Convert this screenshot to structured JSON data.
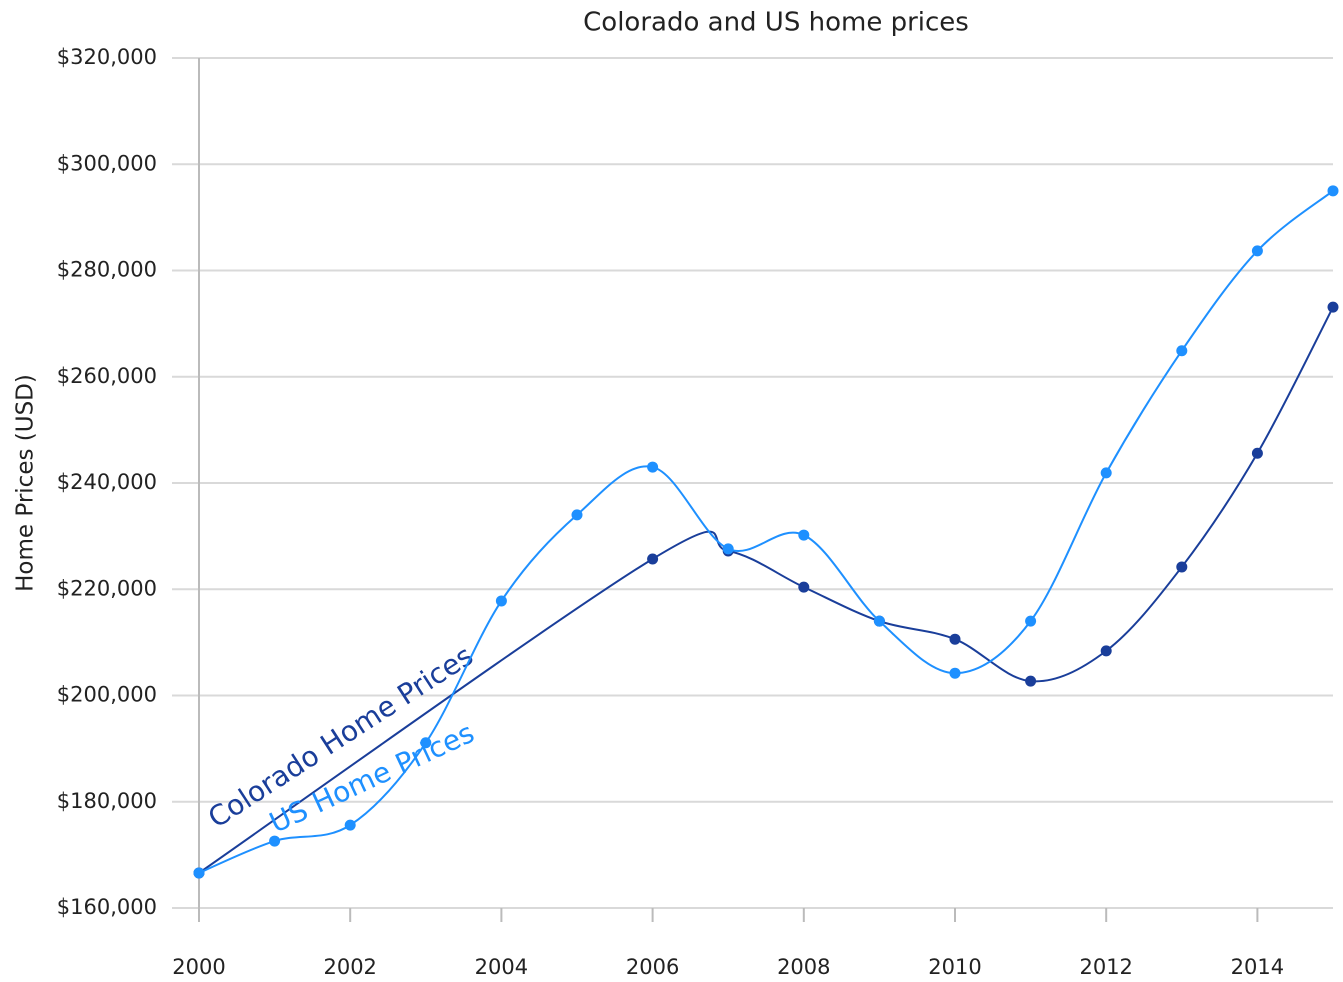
{
  "chart_data": {
    "type": "line",
    "title": "Colorado and US home prices",
    "y_label": "Home Prices (USD)",
    "xlim": [
      2000,
      2015
    ],
    "xticks": [
      2000,
      2002,
      2004,
      2006,
      2008,
      2010,
      2012,
      2014
    ],
    "ylim": [
      160000,
      320000
    ],
    "yticks": [
      {
        "value": 160000,
        "label": "$160,000"
      },
      {
        "value": 180000,
        "label": "$180,000"
      },
      {
        "value": 200000,
        "label": "$200,000"
      },
      {
        "value": 220000,
        "label": "$220,000"
      },
      {
        "value": 240000,
        "label": "$240,000"
      },
      {
        "value": 260000,
        "label": "$260,000"
      },
      {
        "value": 280000,
        "label": "$280,000"
      },
      {
        "value": 300000,
        "label": "$300,000"
      },
      {
        "value": 320000,
        "label": "$320,000"
      }
    ],
    "grid": true,
    "series": [
      {
        "name": "Colorado Home Prices",
        "color": "#1a3e9a",
        "x": [
          2000,
          2006,
          2007,
          2008,
          2009,
          2010,
          2011,
          2012,
          2013,
          2014,
          2015
        ],
        "values": [
          166600,
          225700,
          227200,
          220400,
          214000,
          210600,
          202700,
          208400,
          224200,
          245600,
          273100
        ]
      },
      {
        "name": "US Home Prices",
        "color": "#1e90ff",
        "x": [
          2000,
          2001,
          2002,
          2003,
          2004,
          2005,
          2006,
          2007,
          2008,
          2009,
          2010,
          2011,
          2012,
          2013,
          2014,
          2015
        ],
        "values": [
          166600,
          172600,
          175600,
          191100,
          217800,
          234000,
          243000,
          227600,
          230200,
          214000,
          204200,
          214000,
          241900,
          264900,
          283700,
          295000
        ]
      }
    ]
  }
}
